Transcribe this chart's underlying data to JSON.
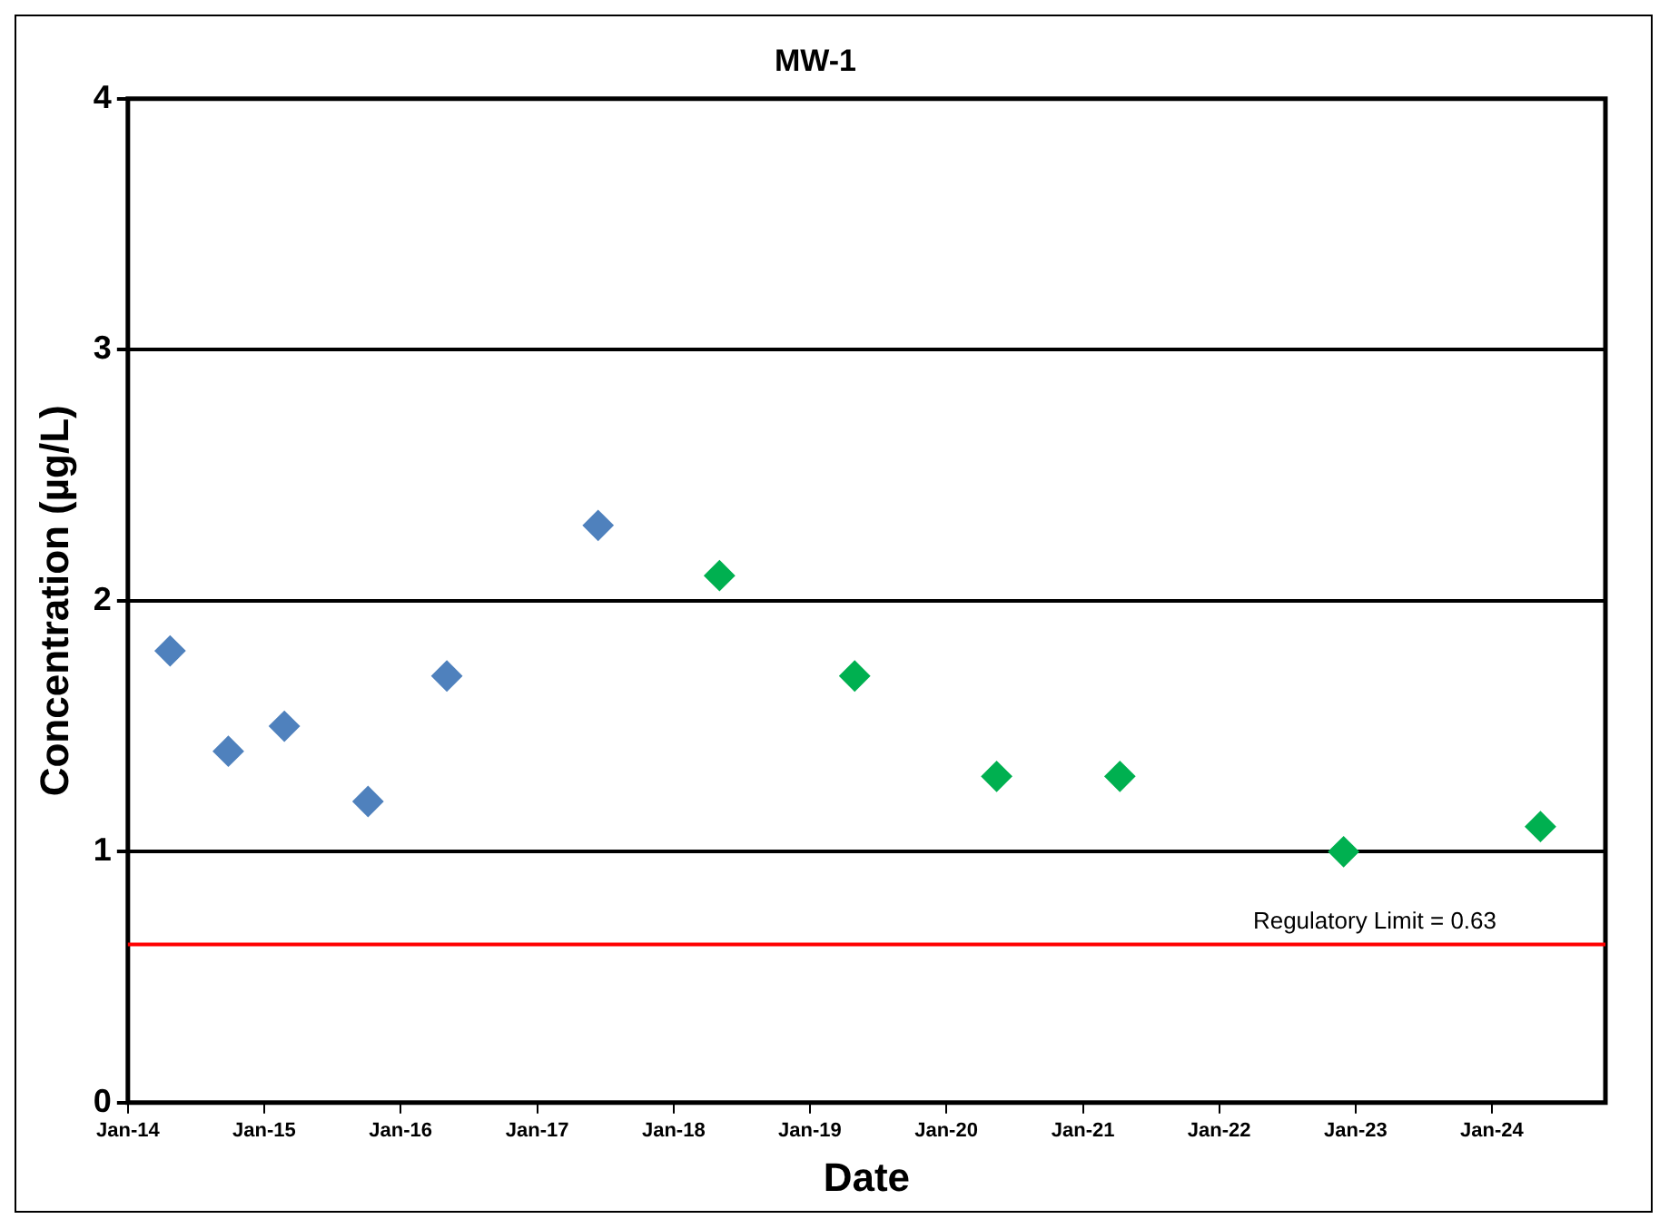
{
  "chart_data": {
    "type": "scatter",
    "title": "MW-1",
    "xlabel": "Date",
    "ylabel": "Concentration (µg/L)",
    "series": [
      {
        "color": "#4f81bd",
        "x": [
          "2014-04-24",
          "2014-09-27",
          "2015-02-24",
          "2015-10-06",
          "2016-05-04",
          "2017-06-13"
        ],
        "values": [
          1.8,
          1.4,
          1.5,
          1.2,
          1.7,
          2.3
        ]
      },
      {
        "color": "#00b050",
        "x": [
          "2018-05-04",
          "2019-05-01",
          "2020-05-15",
          "2021-04-10",
          "2022-11-30",
          "2024-05-10"
        ],
        "values": [
          2.1,
          1.7,
          1.3,
          1.3,
          1.0,
          1.1
        ]
      }
    ],
    "xlim": [
      "2014-01-01",
      "2024-10-31"
    ],
    "xticks": [
      {
        "value": "2014-01-01",
        "label": "Jan-14"
      },
      {
        "value": "2015-01-01",
        "label": "Jan-15"
      },
      {
        "value": "2016-01-01",
        "label": "Jan-16"
      },
      {
        "value": "2017-01-01",
        "label": "Jan-17"
      },
      {
        "value": "2018-01-01",
        "label": "Jan-18"
      },
      {
        "value": "2019-01-01",
        "label": "Jan-19"
      },
      {
        "value": "2020-01-01",
        "label": "Jan-20"
      },
      {
        "value": "2021-01-01",
        "label": "Jan-21"
      },
      {
        "value": "2022-01-01",
        "label": "Jan-22"
      },
      {
        "value": "2023-01-01",
        "label": "Jan-23"
      },
      {
        "value": "2024-01-01",
        "label": "Jan-24"
      }
    ],
    "ylim": [
      0,
      4
    ],
    "yticks": [
      0,
      1,
      2,
      3,
      4
    ],
    "ref_lines": [
      {
        "axis": "y",
        "value": 0.63,
        "label": "Regulatory Limit = 0.63",
        "color": "#ff0000"
      }
    ],
    "grid": "y",
    "legend": false,
    "marker": "diamond"
  }
}
